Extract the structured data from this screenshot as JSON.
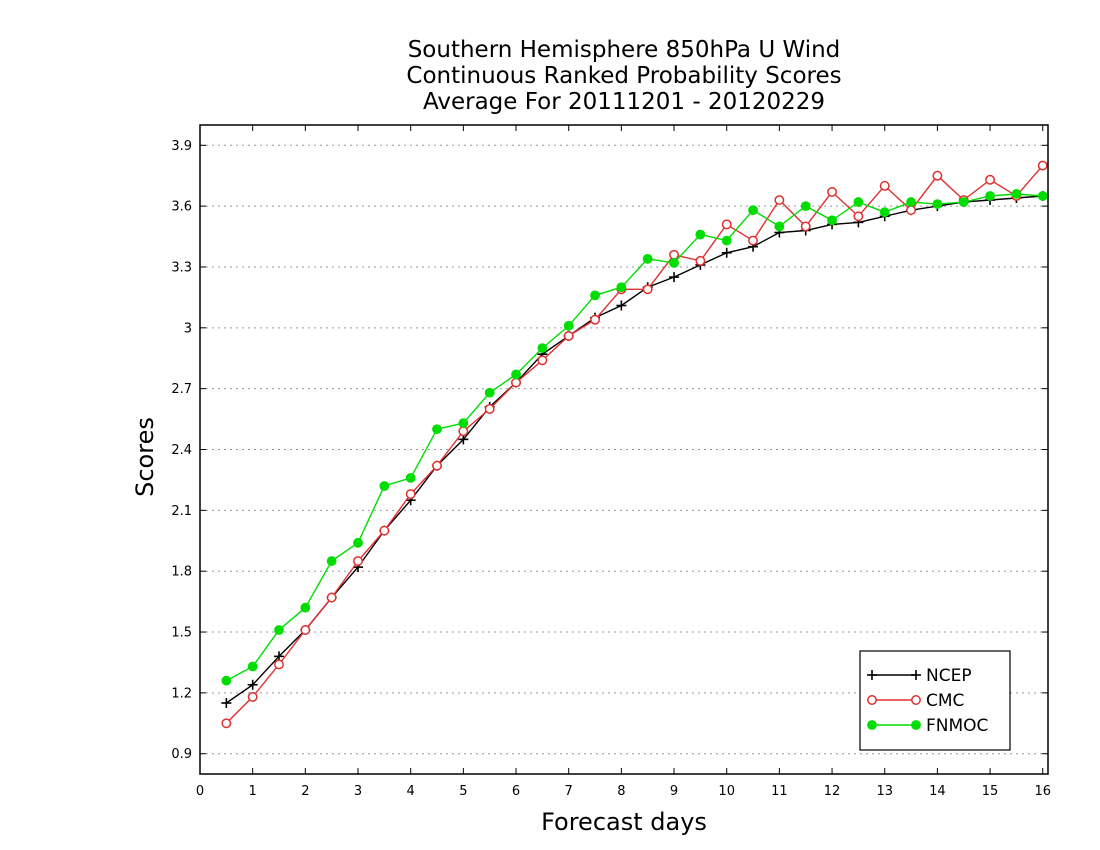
{
  "chart_data": {
    "type": "line",
    "title": [
      "Southern Hemisphere 850hPa U Wind",
      "Continuous Ranked Probability Scores",
      "Average For 20111201 - 20120229"
    ],
    "xlabel": "Forecast days",
    "ylabel": "Scores",
    "xlim": [
      0,
      16.1
    ],
    "ylim": [
      0.8,
      4.0
    ],
    "xticks": [
      "0",
      "1",
      "2",
      "3",
      "4",
      "5",
      "6",
      "7",
      "8",
      "9",
      "10",
      "11",
      "12",
      "13",
      "14",
      "15",
      "16"
    ],
    "yticks": [
      "0.9",
      "1.2",
      "1.5",
      "1.8",
      "2.1",
      "2.4",
      "2.7",
      "3",
      "3.3",
      "3.6",
      "3.9"
    ],
    "grid": "horizontal dotted",
    "legend_position": "bottom-right",
    "x": [
      0.5,
      1,
      1.5,
      2,
      2.5,
      3,
      3.5,
      4,
      4.5,
      5,
      5.5,
      6,
      6.5,
      7,
      7.5,
      8,
      8.5,
      9,
      9.5,
      10,
      10.5,
      11,
      11.5,
      12,
      12.5,
      13,
      13.5,
      14,
      14.5,
      15,
      15.5,
      16
    ],
    "series": [
      {
        "name": "NCEP",
        "color": "#000000",
        "marker": "plus",
        "values": [
          1.15,
          1.24,
          1.38,
          1.51,
          1.67,
          1.82,
          2.0,
          2.15,
          2.32,
          2.45,
          2.61,
          2.73,
          2.87,
          2.96,
          3.05,
          3.11,
          3.2,
          3.25,
          3.31,
          3.37,
          3.4,
          3.47,
          3.48,
          3.51,
          3.52,
          3.55,
          3.58,
          3.6,
          3.62,
          3.63,
          3.64,
          3.65
        ]
      },
      {
        "name": "CMC",
        "color": "#e03030",
        "marker": "open-circle",
        "values": [
          1.05,
          1.18,
          1.34,
          1.51,
          1.67,
          1.85,
          2.0,
          2.18,
          2.32,
          2.49,
          2.6,
          2.73,
          2.84,
          2.96,
          3.04,
          3.19,
          3.19,
          3.36,
          3.33,
          3.51,
          3.43,
          3.63,
          3.5,
          3.67,
          3.55,
          3.7,
          3.58,
          3.75,
          3.63,
          3.73,
          3.65,
          3.8
        ]
      },
      {
        "name": "FNMOC",
        "color": "#00dd00",
        "marker": "filled-circle",
        "values": [
          1.26,
          1.33,
          1.51,
          1.62,
          1.85,
          1.94,
          2.22,
          2.26,
          2.5,
          2.53,
          2.68,
          2.77,
          2.9,
          3.01,
          3.16,
          3.2,
          3.34,
          3.32,
          3.46,
          3.43,
          3.58,
          3.5,
          3.6,
          3.53,
          3.62,
          3.57,
          3.62,
          3.61,
          3.62,
          3.65,
          3.66,
          3.65
        ]
      }
    ]
  }
}
